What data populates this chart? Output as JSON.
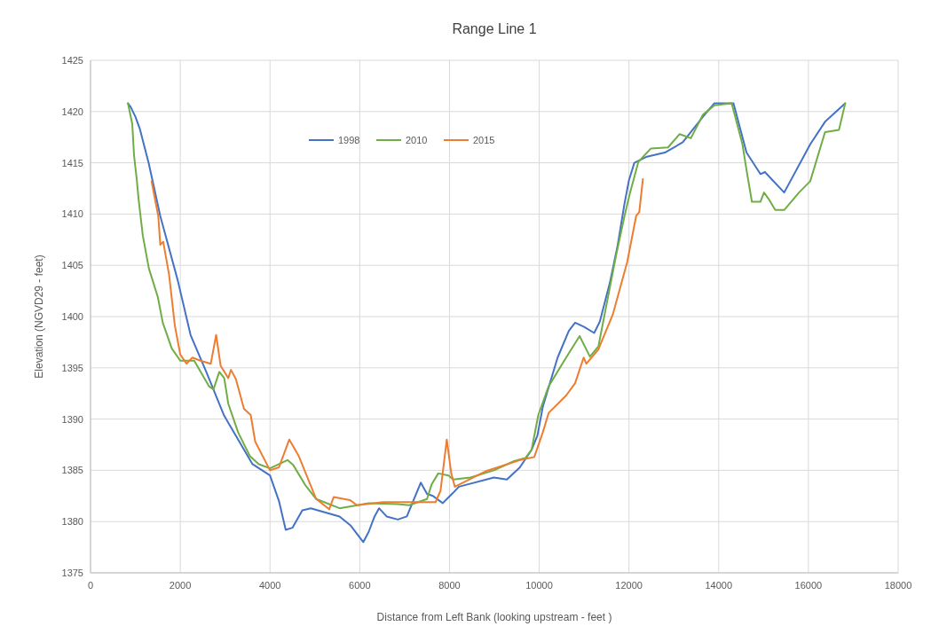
{
  "chart_data": {
    "type": "line",
    "title": "Range Line 1",
    "xlabel": "Distance from Left Bank (looking upstream - feet )",
    "ylabel": "Elevation (NGVD29 - feet)",
    "xlim": [
      0,
      18000
    ],
    "xticks": [
      0,
      2000,
      4000,
      6000,
      8000,
      10000,
      12000,
      14000,
      16000,
      18000
    ],
    "ylim": [
      1375,
      1425
    ],
    "yticks": [
      1375,
      1380,
      1385,
      1390,
      1395,
      1400,
      1405,
      1410,
      1415,
      1420,
      1425
    ],
    "grid": true,
    "legend": "top",
    "marker": "none",
    "line_style": "solid",
    "series": [
      {
        "name": "1998",
        "color": "#4472c4",
        "x": [
          835,
          900,
          1000,
          1100,
          1300,
          1555,
          1940,
          2230,
          2580,
          2970,
          3610,
          4000,
          4200,
          4350,
          4500,
          4720,
          4910,
          5550,
          5800,
          6080,
          6200,
          6330,
          6430,
          6600,
          6850,
          7050,
          7360,
          7500,
          7630,
          7850,
          8080,
          8210,
          8990,
          9280,
          9570,
          9830,
          9960,
          10080,
          10410,
          10660,
          10800,
          11000,
          11225,
          11350,
          11575,
          11750,
          11900,
          12000,
          12120,
          12400,
          12800,
          13200,
          13650,
          13900,
          14330,
          14620,
          14930,
          15030,
          15460,
          16040,
          16370,
          16820
        ],
        "values": [
          1420.8,
          1420.4,
          1419.5,
          1418.3,
          1414.9,
          1409.8,
          1403.6,
          1398.2,
          1394.6,
          1390.4,
          1385.6,
          1384.5,
          1382,
          1379.2,
          1379.4,
          1381.1,
          1381.3,
          1380.5,
          1379.6,
          1378,
          1379,
          1380.5,
          1381.3,
          1380.5,
          1380.2,
          1380.5,
          1383.8,
          1382.7,
          1382.5,
          1381.8,
          1382.8,
          1383.4,
          1384.3,
          1384.1,
          1385.3,
          1387,
          1388.4,
          1391.2,
          1396,
          1398.6,
          1399.4,
          1399,
          1398.4,
          1399.5,
          1403.3,
          1407,
          1411,
          1413.3,
          1415,
          1415.6,
          1416,
          1417,
          1419.5,
          1420.8,
          1420.8,
          1416,
          1413.9,
          1414.1,
          1412.1,
          1416.8,
          1419,
          1420.8
        ]
      },
      {
        "name": "2010",
        "color": "#70ad47",
        "x": [
          835,
          930,
          970,
          1030,
          1070,
          1165,
          1300,
          1500,
          1610,
          1810,
          2000,
          2310,
          2640,
          2740,
          2870,
          2980,
          3070,
          3290,
          3550,
          3750,
          4000,
          4390,
          4520,
          4780,
          5030,
          5550,
          6200,
          6850,
          7100,
          7500,
          7600,
          7750,
          7980,
          8080,
          8470,
          8990,
          9440,
          9690,
          9830,
          9980,
          10210,
          10600,
          10900,
          11130,
          11320,
          11510,
          11710,
          11900,
          12020,
          12210,
          12490,
          12870,
          13130,
          13380,
          13650,
          13900,
          14290,
          14530,
          14620,
          14740,
          14930,
          15010,
          15110,
          15260,
          15460,
          15790,
          16040,
          16370,
          16680,
          16820
        ],
        "values": [
          1420.8,
          1418.8,
          1415.7,
          1413.4,
          1411.5,
          1407.9,
          1404.7,
          1401.9,
          1399.4,
          1396.9,
          1395.7,
          1395.7,
          1393.2,
          1392.9,
          1394.6,
          1394,
          1391.5,
          1388.7,
          1386.4,
          1385.6,
          1385.2,
          1386,
          1385.5,
          1383.6,
          1382.2,
          1381.3,
          1381.8,
          1381.7,
          1381.6,
          1382.2,
          1383.6,
          1384.7,
          1384.5,
          1384.1,
          1384.3,
          1385,
          1385.9,
          1386.2,
          1387,
          1390.4,
          1393.2,
          1396,
          1398.1,
          1396.1,
          1397.1,
          1401.4,
          1405.9,
          1409.8,
          1412,
          1415.1,
          1416.4,
          1416.5,
          1417.8,
          1417.4,
          1419.7,
          1420.6,
          1420.8,
          1416.8,
          1414.3,
          1411.2,
          1411.2,
          1412.1,
          1411.5,
          1410.4,
          1410.4,
          1412.1,
          1413.2,
          1418,
          1418.2,
          1420.8
        ]
      },
      {
        "name": "2015",
        "color": "#ed7d31",
        "x": [
          1360,
          1510,
          1555,
          1620,
          1750,
          1880,
          2000,
          2140,
          2270,
          2450,
          2680,
          2800,
          2900,
          3070,
          3130,
          3240,
          3420,
          3570,
          3670,
          4000,
          4200,
          4430,
          4640,
          5030,
          5320,
          5420,
          5780,
          5940,
          6520,
          7200,
          7690,
          7800,
          7940,
          8040,
          8120,
          8800,
          9570,
          9890,
          10080,
          10210,
          10600,
          10800,
          10990,
          11050,
          11320,
          11640,
          11960,
          12160,
          12230,
          12310
        ],
        "values": [
          1413.2,
          1409.8,
          1407,
          1407.3,
          1404.1,
          1399.1,
          1396.3,
          1395.4,
          1396,
          1395.7,
          1395.4,
          1398.2,
          1395.2,
          1394,
          1394.8,
          1393.9,
          1391,
          1390.4,
          1387.8,
          1385,
          1385.3,
          1388,
          1386.4,
          1382.2,
          1381.2,
          1382.4,
          1382.1,
          1381.6,
          1381.9,
          1381.9,
          1381.9,
          1383,
          1388,
          1384.7,
          1383.4,
          1384.9,
          1386,
          1386.3,
          1388.7,
          1390.6,
          1392.3,
          1393.5,
          1396,
          1395.4,
          1396.8,
          1400.2,
          1405.3,
          1409.8,
          1410.2,
          1413.4
        ]
      }
    ]
  }
}
